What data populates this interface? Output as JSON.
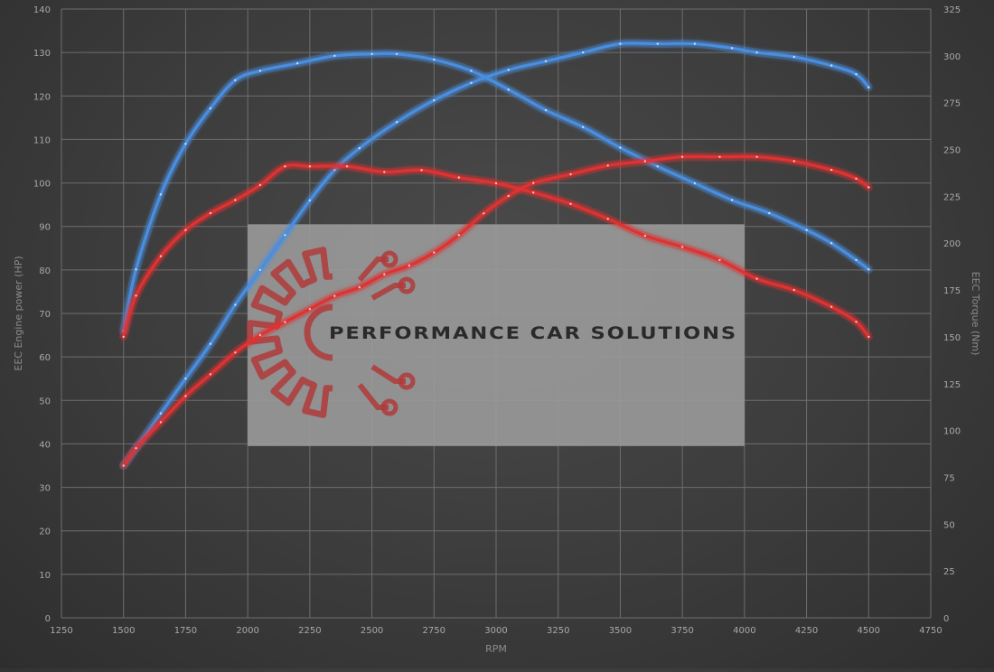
{
  "chart_data": {
    "type": "line",
    "title": "",
    "xlabel": "RPM",
    "ylabel_left": "EEC Engine power (HP)",
    "ylabel_right": "EEC Torque (Nm)",
    "xlim": [
      1250,
      4750
    ],
    "x_ticks": [
      1250,
      1500,
      1750,
      2000,
      2250,
      2500,
      2750,
      3000,
      3250,
      3500,
      3750,
      4000,
      4250,
      4500,
      4750
    ],
    "ylim_left": [
      0,
      140
    ],
    "y_ticks_left": [
      0,
      10,
      20,
      30,
      40,
      50,
      60,
      70,
      80,
      90,
      100,
      110,
      120,
      130,
      140
    ],
    "ylim_right": [
      0,
      325
    ],
    "y_ticks_right": [
      0,
      25,
      50,
      75,
      100,
      125,
      150,
      175,
      200,
      225,
      250,
      275,
      300,
      325
    ],
    "grid": true,
    "legend": "none",
    "series": [
      {
        "axis": "right",
        "color": "#4a8ee0",
        "x": [
          1500,
          1550,
          1650,
          1750,
          1850,
          1950,
          2050,
          2200,
          2350,
          2500,
          2600,
          2750,
          2900,
          3050,
          3200,
          3350,
          3500,
          3650,
          3800,
          3950,
          4100,
          4250,
          4350,
          4450,
          4500
        ],
        "values": [
          153,
          186,
          226,
          253,
          272,
          287,
          292,
          296,
          300,
          301,
          301,
          298,
          292,
          282,
          271,
          262,
          251,
          241,
          232,
          223,
          216,
          207,
          200,
          191,
          186
        ]
      },
      {
        "axis": "left",
        "color": "#4a8ee0",
        "x": [
          1500,
          1550,
          1650,
          1750,
          1850,
          1950,
          2050,
          2150,
          2250,
          2350,
          2450,
          2600,
          2750,
          2900,
          3050,
          3200,
          3350,
          3500,
          3650,
          3800,
          3950,
          4050,
          4200,
          4350,
          4450,
          4500
        ],
        "values": [
          35,
          39,
          47,
          55,
          63,
          72,
          80,
          88,
          96,
          103,
          108,
          114,
          119,
          123,
          126,
          128,
          130,
          132,
          132,
          132,
          131,
          130,
          129,
          127,
          125,
          122
        ]
      },
      {
        "axis": "right",
        "color": "#e03030",
        "x": [
          1500,
          1550,
          1650,
          1750,
          1850,
          1950,
          2050,
          2150,
          2250,
          2400,
          2550,
          2700,
          2850,
          3000,
          3150,
          3300,
          3450,
          3600,
          3750,
          3900,
          4050,
          4200,
          4350,
          4450,
          4500
        ],
        "values": [
          150,
          172,
          193,
          207,
          216,
          223,
          231,
          241,
          241,
          241,
          238,
          239,
          235,
          232,
          227,
          221,
          213,
          204,
          198,
          191,
          181,
          175,
          166,
          158,
          150
        ]
      },
      {
        "axis": "left",
        "color": "#e03030",
        "x": [
          1500,
          1550,
          1650,
          1750,
          1850,
          1950,
          2050,
          2150,
          2250,
          2350,
          2450,
          2550,
          2650,
          2750,
          2850,
          2950,
          3050,
          3150,
          3300,
          3450,
          3600,
          3750,
          3900,
          4050,
          4200,
          4350,
          4450,
          4500
        ],
        "values": [
          35,
          39,
          45,
          51,
          56,
          61,
          65,
          68,
          71,
          74,
          76,
          79,
          81,
          84,
          88,
          93,
          97,
          100,
          102,
          104,
          105,
          106,
          106,
          106,
          105,
          103,
          101,
          99
        ]
      }
    ]
  },
  "watermark": {
    "text": "PERFORMANCE CAR SOLUTIONS",
    "logo_icon": "gear-circuit-logo-icon",
    "logo_color": "#b03a3a",
    "band_color": "#9a9a9a"
  }
}
